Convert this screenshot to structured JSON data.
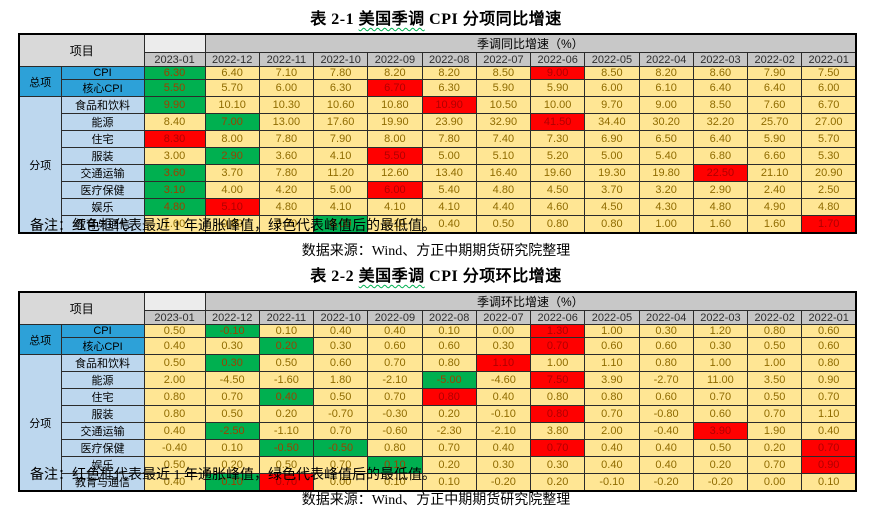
{
  "palette": {
    "cell_yellow": "#FFE694",
    "mark_red": "#FF0000",
    "mark_green": "#00B050",
    "label_blue": "#2DA1D8",
    "label_light_blue": "#BDD7EE",
    "header_gray": "#C6C6C6"
  },
  "note_text": "备注：红色框代表最近 1 年通胀峰值，绿色代表峰值后的最低值。",
  "source_text": "数据来源：Wind、方正中期期货研究院整理",
  "tables": [
    {
      "title_prefix": "表 2-1",
      "title_wavy": "美国季调",
      "title_suffix": "CPI 分项同比增速",
      "corner_label": "项目",
      "group_header": "季调同比增速（%）",
      "columns": [
        "2023-01",
        "2022-12",
        "2022-11",
        "2022-10",
        "2022-09",
        "2022-08",
        "2022-07",
        "2022-06",
        "2022-05",
        "2022-04",
        "2022-03",
        "2022-02",
        "2022-01"
      ],
      "groups": [
        {
          "label": "总项",
          "rows": [
            {
              "label": "CPI",
              "values": [
                "6.30",
                "6.40",
                "7.10",
                "7.80",
                "8.20",
                "8.20",
                "8.50",
                "9.00",
                "8.50",
                "8.20",
                "8.60",
                "7.90",
                "7.50"
              ],
              "marks": [
                "green",
                "",
                "",
                "",
                "",
                "",
                "",
                "red",
                "",
                "",
                "",
                "",
                ""
              ]
            },
            {
              "label": "核心CPI",
              "values": [
                "5.50",
                "5.70",
                "6.00",
                "6.30",
                "6.70",
                "6.30",
                "5.90",
                "5.90",
                "6.00",
                "6.10",
                "6.40",
                "6.40",
                "6.00"
              ],
              "marks": [
                "green",
                "",
                "",
                "",
                "red",
                "",
                "",
                "",
                "",
                "",
                "",
                "",
                ""
              ]
            }
          ]
        },
        {
          "label": "分项",
          "rows": [
            {
              "label": "食品和饮料",
              "values": [
                "9.90",
                "10.10",
                "10.30",
                "10.60",
                "10.80",
                "10.90",
                "10.50",
                "10.00",
                "9.70",
                "9.00",
                "8.50",
                "7.60",
                "6.70"
              ],
              "marks": [
                "green",
                "",
                "",
                "",
                "",
                "red",
                "",
                "",
                "",
                "",
                "",
                "",
                ""
              ]
            },
            {
              "label": "能源",
              "values": [
                "8.40",
                "7.00",
                "13.00",
                "17.60",
                "19.90",
                "23.90",
                "32.90",
                "41.50",
                "34.40",
                "30.20",
                "32.20",
                "25.70",
                "27.00"
              ],
              "marks": [
                "",
                "green",
                "",
                "",
                "",
                "",
                "",
                "red",
                "",
                "",
                "",
                "",
                ""
              ]
            },
            {
              "label": "住宅",
              "values": [
                "8.30",
                "8.00",
                "7.80",
                "7.90",
                "8.00",
                "7.80",
                "7.40",
                "7.30",
                "6.90",
                "6.50",
                "6.40",
                "5.90",
                "5.70"
              ],
              "marks": [
                "red",
                "",
                "",
                "",
                "",
                "",
                "",
                "",
                "",
                "",
                "",
                "",
                ""
              ]
            },
            {
              "label": "服装",
              "values": [
                "3.00",
                "2.90",
                "3.60",
                "4.10",
                "5.50",
                "5.00",
                "5.10",
                "5.20",
                "5.00",
                "5.40",
                "6.80",
                "6.60",
                "5.30"
              ],
              "marks": [
                "",
                "green",
                "",
                "",
                "red",
                "",
                "",
                "",
                "",
                "",
                "",
                "",
                ""
              ]
            },
            {
              "label": "交通运输",
              "values": [
                "3.60",
                "3.70",
                "7.80",
                "11.20",
                "12.60",
                "13.40",
                "16.40",
                "19.60",
                "19.30",
                "19.80",
                "22.50",
                "21.10",
                "20.90"
              ],
              "marks": [
                "green",
                "",
                "",
                "",
                "",
                "",
                "",
                "",
                "",
                "",
                "red",
                "",
                ""
              ]
            },
            {
              "label": "医疗保健",
              "values": [
                "3.10",
                "4.00",
                "4.20",
                "5.00",
                "6.00",
                "5.40",
                "4.80",
                "4.50",
                "3.70",
                "3.20",
                "2.90",
                "2.40",
                "2.50"
              ],
              "marks": [
                "green",
                "",
                "",
                "",
                "red",
                "",
                "",
                "",
                "",
                "",
                "",
                "",
                ""
              ]
            },
            {
              "label": "娱乐",
              "values": [
                "4.80",
                "5.10",
                "4.80",
                "4.10",
                "4.10",
                "4.10",
                "4.40",
                "4.60",
                "4.50",
                "4.30",
                "4.80",
                "4.90",
                "4.80"
              ],
              "marks": [
                "green",
                "red",
                "",
                "",
                "",
                "",
                "",
                "",
                "",
                "",
                "",
                "",
                ""
              ]
            },
            {
              "label": "教育与通信",
              "values": [
                "1.00",
                "0.80",
                "0.70",
                "0.00",
                "0.10",
                "0.40",
                "0.50",
                "0.80",
                "0.80",
                "1.00",
                "1.60",
                "1.60",
                "1.70"
              ],
              "marks": [
                "",
                "",
                "",
                "green",
                "",
                "",
                "",
                "",
                "",
                "",
                "",
                "",
                "red"
              ]
            }
          ]
        }
      ]
    },
    {
      "title_prefix": "表 2-2",
      "title_wavy": "美国季调",
      "title_suffix": "CPI 分项环比增速",
      "corner_label": "项目",
      "group_header": "季调环比增速（%）",
      "columns": [
        "2023-01",
        "2022-12",
        "2022-11",
        "2022-10",
        "2022-09",
        "2022-08",
        "2022-07",
        "2022-06",
        "2022-05",
        "2022-04",
        "2022-03",
        "2022-02",
        "2022-01"
      ],
      "groups": [
        {
          "label": "总项",
          "rows": [
            {
              "label": "CPI",
              "values": [
                "0.50",
                "-0.10",
                "0.10",
                "0.40",
                "0.40",
                "0.10",
                "0.00",
                "1.30",
                "1.00",
                "0.30",
                "1.20",
                "0.80",
                "0.60"
              ],
              "marks": [
                "",
                "green",
                "",
                "",
                "",
                "",
                "",
                "red",
                "",
                "",
                "",
                "",
                ""
              ]
            },
            {
              "label": "核心CPI",
              "values": [
                "0.40",
                "0.30",
                "0.20",
                "0.30",
                "0.60",
                "0.60",
                "0.30",
                "0.70",
                "0.60",
                "0.60",
                "0.30",
                "0.50",
                "0.60"
              ],
              "marks": [
                "",
                "",
                "green",
                "",
                "",
                "",
                "",
                "red",
                "",
                "",
                "",
                "",
                ""
              ]
            }
          ]
        },
        {
          "label": "分项",
          "rows": [
            {
              "label": "食品和饮料",
              "values": [
                "0.50",
                "0.30",
                "0.50",
                "0.60",
                "0.70",
                "0.80",
                "1.10",
                "1.00",
                "1.10",
                "0.80",
                "1.00",
                "1.00",
                "0.80"
              ],
              "marks": [
                "",
                "green",
                "",
                "",
                "",
                "",
                "red",
                "",
                "",
                "",
                "",
                "",
                ""
              ]
            },
            {
              "label": "能源",
              "values": [
                "2.00",
                "-4.50",
                "-1.60",
                "1.80",
                "-2.10",
                "-5.00",
                "-4.60",
                "7.50",
                "3.90",
                "-2.70",
                "11.00",
                "3.50",
                "0.90"
              ],
              "marks": [
                "",
                "",
                "",
                "",
                "",
                "green",
                "",
                "red",
                "",
                "",
                "",
                "",
                ""
              ]
            },
            {
              "label": "住宅",
              "values": [
                "0.80",
                "0.70",
                "0.40",
                "0.50",
                "0.70",
                "0.80",
                "0.40",
                "0.80",
                "0.80",
                "0.60",
                "0.70",
                "0.50",
                "0.70"
              ],
              "marks": [
                "",
                "",
                "green",
                "",
                "",
                "red",
                "",
                "",
                "",
                "",
                "",
                "",
                ""
              ]
            },
            {
              "label": "服装",
              "values": [
                "0.80",
                "0.50",
                "0.20",
                "-0.70",
                "-0.30",
                "0.20",
                "-0.10",
                "0.80",
                "0.70",
                "-0.80",
                "0.60",
                "0.70",
                "1.10"
              ],
              "marks": [
                "",
                "",
                "",
                "",
                "",
                "",
                "",
                "red",
                "",
                "",
                "",
                "",
                ""
              ]
            },
            {
              "label": "交通运输",
              "values": [
                "0.40",
                "-2.50",
                "-1.10",
                "0.70",
                "-0.60",
                "-2.30",
                "-2.10",
                "3.80",
                "2.00",
                "-0.40",
                "3.90",
                "1.90",
                "0.40"
              ],
              "marks": [
                "",
                "green",
                "",
                "",
                "",
                "",
                "",
                "",
                "",
                "",
                "red",
                "",
                ""
              ]
            },
            {
              "label": "医疗保健",
              "values": [
                "-0.40",
                "0.10",
                "-0.50",
                "-0.50",
                "0.80",
                "0.70",
                "0.40",
                "0.70",
                "0.40",
                "0.40",
                "0.50",
                "0.20",
                "0.70"
              ],
              "marks": [
                "",
                "",
                "green",
                "green",
                "",
                "",
                "",
                "red",
                "",
                "",
                "",
                "",
                "red"
              ]
            },
            {
              "label": "娱乐",
              "values": [
                "0.50",
                "0.20",
                "0.50",
                "0.70",
                "0.10",
                "0.20",
                "0.30",
                "0.30",
                "0.40",
                "0.40",
                "0.20",
                "0.70",
                "0.90"
              ],
              "marks": [
                "",
                "",
                "",
                "",
                "green",
                "",
                "",
                "",
                "",
                "",
                "",
                "",
                "red"
              ]
            },
            {
              "label": "教育与通信",
              "values": [
                "0.40",
                "0.10",
                "0.70",
                "0.00",
                "0.10",
                "0.10",
                "-0.20",
                "0.20",
                "-0.10",
                "-0.20",
                "-0.20",
                "0.00",
                "0.10"
              ],
              "marks": [
                "",
                "green",
                "red",
                "",
                "",
                "",
                "",
                "",
                "",
                "",
                "",
                "",
                ""
              ]
            }
          ]
        }
      ]
    }
  ]
}
